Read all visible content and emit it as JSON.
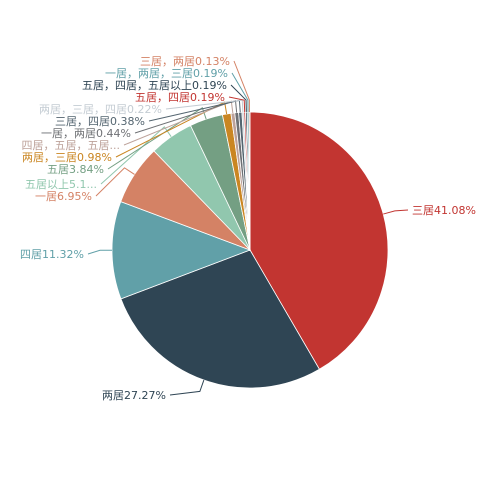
{
  "chart_data": {
    "type": "pie",
    "slices": [
      {
        "label": "三居41.08%",
        "value": 41.08,
        "color": "#c23531"
      },
      {
        "label": "两居27.27%",
        "value": 27.27,
        "color": "#2f4554"
      },
      {
        "label": "四居11.32%",
        "value": 11.32,
        "color": "#61a0a8"
      },
      {
        "label": "一居6.95%",
        "value": 6.95,
        "color": "#d48265"
      },
      {
        "label": "五居以上5.1...",
        "value": 5.1,
        "color": "#91c7ae"
      },
      {
        "label": "五居3.84%",
        "value": 3.84,
        "color": "#749f83"
      },
      {
        "label": "两居，三居0.98%",
        "value": 0.98,
        "color": "#ca8622"
      },
      {
        "label": "四居，五居，五居...",
        "value": 0.44,
        "color": "#bda29a"
      },
      {
        "label": "一居，两居0.44%",
        "value": 0.44,
        "color": "#6e7074"
      },
      {
        "label": "三居，四居0.38%",
        "value": 0.38,
        "color": "#546570"
      },
      {
        "label": "两居，三居，四居0.22%",
        "value": 0.22,
        "color": "#c4ccd3"
      },
      {
        "label": "五居，四居0.19%",
        "value": 0.19,
        "color": "#c23531"
      },
      {
        "label": "五居，四居，五居以上0.19%",
        "value": 0.19,
        "color": "#2f4554"
      },
      {
        "label": "一居，两居，三居0.19%",
        "value": 0.19,
        "color": "#61a0a8"
      },
      {
        "label": "三居，两居0.13%",
        "value": 0.13,
        "color": "#d48265"
      }
    ]
  }
}
